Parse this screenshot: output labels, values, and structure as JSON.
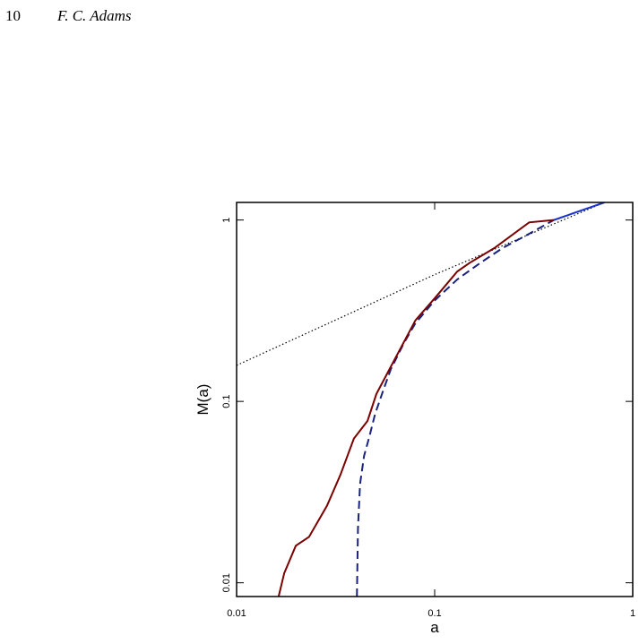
{
  "header": {
    "page": "10",
    "author": "F. C. Adams"
  },
  "chart_data": {
    "type": "line",
    "x_label": "a",
    "y_label": "M(a)",
    "log_x": true,
    "log_y": true,
    "xlim": [
      0.01,
      1
    ],
    "ylim": [
      0.0084,
      1.25
    ],
    "xticks": [
      {
        "value": 0.01,
        "label": "0.01"
      },
      {
        "value": 0.1,
        "label": "0.1"
      },
      1
    ],
    "yticks": [
      {
        "value": 0.01,
        "label": "0.01"
      },
      {
        "value": 0.1,
        "label": "0.1"
      },
      1
    ],
    "series": [
      {
        "color": "#000000",
        "style": "dotted",
        "x": [
          0.01,
          0.1,
          0.72
        ],
        "values": [
          0.158,
          0.5,
          1.25
        ]
      },
      {
        "color": "#1a237e",
        "style": "dashed",
        "x": [
          0.0405,
          0.041,
          0.042,
          0.044,
          0.047,
          0.05,
          0.055,
          0.06,
          0.07,
          0.08,
          0.1,
          0.13,
          0.17,
          0.22,
          0.3,
          0.4
        ],
        "values": [
          0.0084,
          0.02,
          0.035,
          0.05,
          0.065,
          0.085,
          0.115,
          0.15,
          0.21,
          0.27,
          0.36,
          0.47,
          0.58,
          0.7,
          0.84,
          1.0
        ]
      },
      {
        "color": "#1a33cc",
        "style": "solid",
        "x": [
          0.4,
          0.72
        ],
        "values": [
          1.0,
          1.25
        ]
      },
      {
        "color": "#7a0000",
        "style": "solid",
        "x": [
          0.0163,
          0.0174,
          0.0199,
          0.0232,
          0.0286,
          0.0335,
          0.0391,
          0.0458,
          0.0508,
          0.06,
          0.08,
          0.1,
          0.13,
          0.15,
          0.2,
          0.3,
          0.4
        ],
        "values": [
          0.0084,
          0.0113,
          0.016,
          0.0179,
          0.0266,
          0.0396,
          0.0624,
          0.078,
          0.11,
          0.155,
          0.28,
          0.37,
          0.52,
          0.58,
          0.7,
          0.97,
          1.0
        ]
      }
    ]
  }
}
